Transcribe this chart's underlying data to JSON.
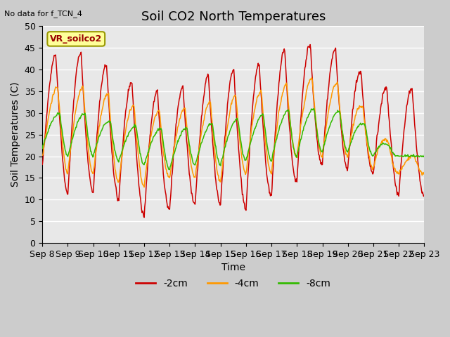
{
  "title": "Soil CO2 North Temperatures",
  "subtitle": "No data for f_TCN_4",
  "ylabel": "Soil Temperatures (C)",
  "xlabel": "Time",
  "ylim": [
    0,
    50
  ],
  "yticks": [
    0,
    5,
    10,
    15,
    20,
    25,
    30,
    35,
    40,
    45,
    50
  ],
  "xtick_labels": [
    "Sep 8",
    "Sep 9",
    "Sep 10",
    "Sep 11",
    "Sep 12",
    "Sep 13",
    "Sep 14",
    "Sep 15",
    "Sep 16",
    "Sep 17",
    "Sep 18",
    "Sep 19",
    "Sep 20",
    "Sep 21",
    "Sep 22",
    "Sep 23"
  ],
  "legend_label_box": "VR_soilco2",
  "color_red": "#cc0000",
  "color_orange": "#ff9900",
  "color_green": "#33bb00",
  "label_red": "-2cm",
  "label_orange": "-4cm",
  "label_green": "-8cm",
  "background_color": "#cccccc",
  "plot_bg_color": "#e8e8e8",
  "grid_color": "#ffffff",
  "title_fontsize": 13,
  "axis_fontsize": 10,
  "tick_fontsize": 9,
  "legend_box_facecolor": "#ffff99",
  "legend_box_edgecolor": "#999900",
  "n_days": 15,
  "pts_per_day": 48
}
